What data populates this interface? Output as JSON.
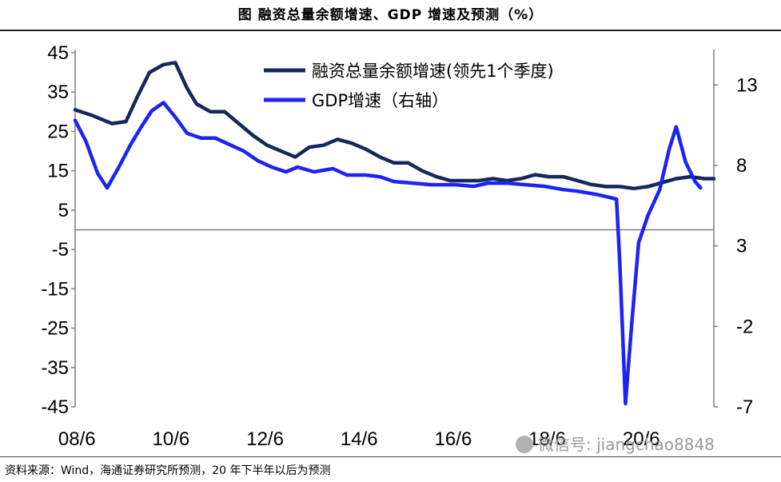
{
  "title": "图  融资总量余额增速、GDP 增速及预测（%）",
  "source_note": "资料来源：Wind，海通证券研究所预测，20 年下半年以后为预测",
  "watermark": "微信号: jiangchao8848",
  "chart_data": {
    "type": "line",
    "x_ticks": [
      "08/6",
      "10/6",
      "12/6",
      "14/6",
      "16/6",
      "18/6",
      "20/6"
    ],
    "x_range": [
      2008.42,
      2022.0
    ],
    "y_left": {
      "ticks": [
        "45",
        "35",
        "25",
        "15",
        "5",
        "-5",
        "-15",
        "-25",
        "-35",
        "-45"
      ],
      "range": [
        -45,
        45
      ]
    },
    "y_right": {
      "ticks": [
        "13",
        "8",
        "3",
        "-2",
        "-7"
      ],
      "range": [
        -7,
        15
      ]
    },
    "grid": false,
    "legend_position": "top-right",
    "series": [
      {
        "name": "融资总量余额增速(领先1个季度)",
        "axis": "left",
        "color": "#14285a",
        "points": [
          [
            2008.42,
            30.5
          ],
          [
            2008.8,
            29
          ],
          [
            2009.2,
            27
          ],
          [
            2009.5,
            27.5
          ],
          [
            2009.75,
            34
          ],
          [
            2010.0,
            40
          ],
          [
            2010.3,
            42
          ],
          [
            2010.55,
            42.5
          ],
          [
            2010.8,
            36
          ],
          [
            2011.0,
            32
          ],
          [
            2011.3,
            30
          ],
          [
            2011.6,
            30
          ],
          [
            2011.9,
            27
          ],
          [
            2012.2,
            24
          ],
          [
            2012.5,
            21.5
          ],
          [
            2012.8,
            20
          ],
          [
            2013.1,
            18.5
          ],
          [
            2013.4,
            21
          ],
          [
            2013.7,
            21.5
          ],
          [
            2014.0,
            23
          ],
          [
            2014.3,
            22
          ],
          [
            2014.6,
            20.5
          ],
          [
            2014.9,
            18.5
          ],
          [
            2015.2,
            17
          ],
          [
            2015.5,
            17
          ],
          [
            2015.8,
            15
          ],
          [
            2016.1,
            13.5
          ],
          [
            2016.4,
            12.5
          ],
          [
            2016.7,
            12.5
          ],
          [
            2017.0,
            12.5
          ],
          [
            2017.3,
            13
          ],
          [
            2017.6,
            12.5
          ],
          [
            2017.9,
            13
          ],
          [
            2018.2,
            14
          ],
          [
            2018.5,
            13.5
          ],
          [
            2018.8,
            13.5
          ],
          [
            2019.1,
            12.5
          ],
          [
            2019.4,
            11.5
          ],
          [
            2019.7,
            11
          ],
          [
            2020.0,
            11
          ],
          [
            2020.3,
            10.5
          ],
          [
            2020.6,
            11
          ],
          [
            2020.9,
            12
          ],
          [
            2021.2,
            13
          ],
          [
            2021.5,
            13.5
          ],
          [
            2021.8,
            13
          ],
          [
            2022.0,
            13
          ]
        ]
      },
      {
        "name": "GDP增速（右轴）",
        "axis": "right",
        "color": "#1e23f5",
        "points": [
          [
            2008.42,
            10.8
          ],
          [
            2008.65,
            9.5
          ],
          [
            2008.9,
            7.5
          ],
          [
            2009.1,
            6.6
          ],
          [
            2009.35,
            7.9
          ],
          [
            2009.6,
            9.3
          ],
          [
            2009.85,
            10.5
          ],
          [
            2010.05,
            11.4
          ],
          [
            2010.3,
            11.9
          ],
          [
            2010.55,
            11.0
          ],
          [
            2010.8,
            10.0
          ],
          [
            2011.1,
            9.7
          ],
          [
            2011.4,
            9.7
          ],
          [
            2011.7,
            9.3
          ],
          [
            2012.0,
            8.9
          ],
          [
            2012.3,
            8.3
          ],
          [
            2012.6,
            7.9
          ],
          [
            2012.9,
            7.6
          ],
          [
            2013.15,
            7.9
          ],
          [
            2013.5,
            7.6
          ],
          [
            2013.9,
            7.8
          ],
          [
            2014.2,
            7.4
          ],
          [
            2014.6,
            7.4
          ],
          [
            2014.9,
            7.3
          ],
          [
            2015.2,
            7.0
          ],
          [
            2015.6,
            6.9
          ],
          [
            2016.0,
            6.8
          ],
          [
            2016.5,
            6.8
          ],
          [
            2016.9,
            6.7
          ],
          [
            2017.2,
            6.9
          ],
          [
            2017.6,
            6.9
          ],
          [
            2018.0,
            6.8
          ],
          [
            2018.4,
            6.7
          ],
          [
            2018.8,
            6.5
          ],
          [
            2019.1,
            6.4
          ],
          [
            2019.5,
            6.2
          ],
          [
            2019.8,
            6.0
          ],
          [
            2019.93,
            5.9
          ],
          [
            2020.0,
            2.0
          ],
          [
            2020.12,
            -6.8
          ],
          [
            2020.25,
            -2.0
          ],
          [
            2020.4,
            3.2
          ],
          [
            2020.6,
            4.9
          ],
          [
            2020.85,
            6.5
          ],
          [
            2021.05,
            9.0
          ],
          [
            2021.2,
            10.4
          ],
          [
            2021.4,
            8.2
          ],
          [
            2021.6,
            7.0
          ],
          [
            2021.72,
            6.6
          ]
        ]
      }
    ]
  }
}
